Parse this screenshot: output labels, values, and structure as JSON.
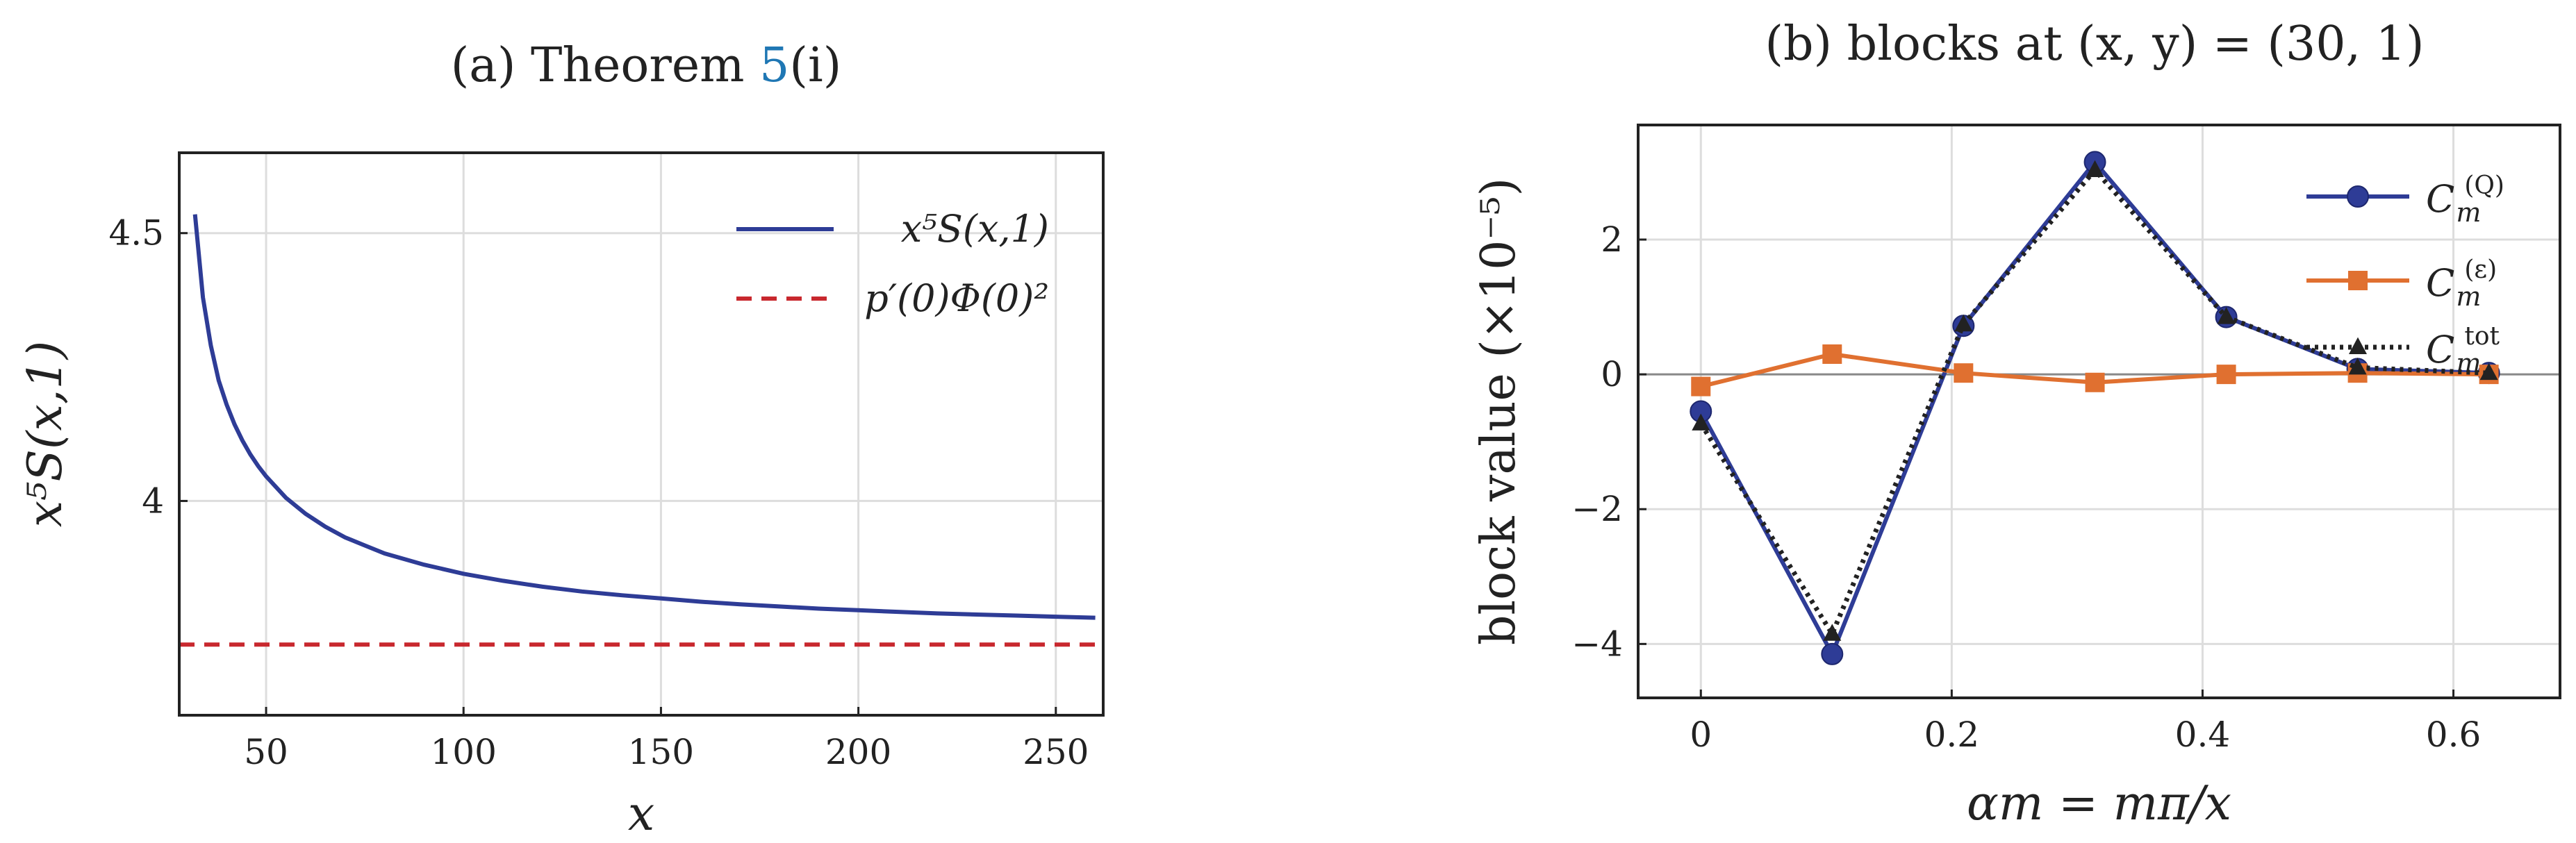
{
  "chart_data": [
    {
      "type": "line",
      "panel": "a",
      "title": {
        "prefix": "(a) Theorem ",
        "ref": "5",
        "suffix": "(i)"
      },
      "xlabel": "x",
      "ylabel": "x⁵S(x,1)",
      "xlim": [
        28,
        262
      ],
      "ylim": [
        3.6,
        4.65
      ],
      "xticks": [
        50,
        100,
        150,
        200,
        250
      ],
      "yticks": [
        {
          "value": 4.5,
          "label": "4.5"
        },
        {
          "value": 4.0,
          "label": "4"
        }
      ],
      "grid": true,
      "legend_position": "top-right",
      "series": [
        {
          "name": "x⁵S(x,1)",
          "color": "#2e3c96",
          "style": "solid",
          "x": [
            32,
            34,
            36,
            38,
            40,
            42,
            44,
            46,
            48,
            50,
            55,
            60,
            65,
            70,
            75,
            80,
            90,
            100,
            110,
            120,
            130,
            140,
            150,
            160,
            170,
            180,
            190,
            200,
            210,
            220,
            230,
            240,
            250,
            260
          ],
          "y": [
            4.535,
            4.38,
            4.29,
            4.225,
            4.18,
            4.143,
            4.113,
            4.087,
            4.065,
            4.046,
            4.006,
            3.976,
            3.952,
            3.932,
            3.917,
            3.902,
            3.881,
            3.864,
            3.851,
            3.84,
            3.831,
            3.824,
            3.818,
            3.812,
            3.807,
            3.803,
            3.799,
            3.796,
            3.793,
            3.79,
            3.788,
            3.786,
            3.784,
            3.782
          ]
        },
        {
          "name": "p′(0)Φ(0)²",
          "color": "#c8282e",
          "style": "dashed",
          "x": [
            28,
            262
          ],
          "y": [
            3.732,
            3.732
          ]
        }
      ]
    },
    {
      "type": "line",
      "panel": "b",
      "title": "(b) blocks at (x, y) = (30, 1)",
      "xlabel": "αm = mπ/x",
      "ylabel": "block value (×10⁻⁵)",
      "xlim": [
        -0.05,
        0.685
      ],
      "ylim": [
        -4.8,
        3.7
      ],
      "xticks": [
        {
          "value": 0,
          "label": "0"
        },
        {
          "value": 0.2,
          "label": "0.2"
        },
        {
          "value": 0.4,
          "label": "0.4"
        },
        {
          "value": 0.6,
          "label": "0.6"
        }
      ],
      "yticks": [
        {
          "value": 2,
          "label": "2"
        },
        {
          "value": 0,
          "label": "0"
        },
        {
          "value": -2,
          "label": "−2"
        },
        {
          "value": -4,
          "label": "−4"
        }
      ],
      "grid": true,
      "legend_position": "top-right",
      "series": [
        {
          "name": "C_m^(Q)",
          "color": "#2e3c96",
          "marker": "circle",
          "x": [
            0,
            0.1047,
            0.2094,
            0.3142,
            0.4189,
            0.5236,
            0.6283
          ],
          "y": [
            -0.55,
            -4.15,
            0.72,
            3.15,
            0.85,
            0.08,
            0.02
          ]
        },
        {
          "name": "C_m^(ε)",
          "color": "#e07030",
          "marker": "square",
          "x": [
            0,
            0.1047,
            0.2094,
            0.3142,
            0.4189,
            0.5236,
            0.6283
          ],
          "y": [
            -0.18,
            0.3,
            0.02,
            -0.12,
            0.0,
            0.02,
            0.0
          ]
        },
        {
          "name": "C_m^tot",
          "color": "#222222",
          "marker": "triangle",
          "style": "dotted",
          "x": [
            0,
            0.1047,
            0.2094,
            0.3142,
            0.4189,
            0.5236,
            0.6283
          ],
          "y": [
            -0.73,
            -3.85,
            0.74,
            3.03,
            0.85,
            0.1,
            0.02
          ]
        }
      ]
    }
  ],
  "colors": {
    "link": "#1f77b4",
    "grid": "#dddddd",
    "zero_line": "#888888"
  }
}
